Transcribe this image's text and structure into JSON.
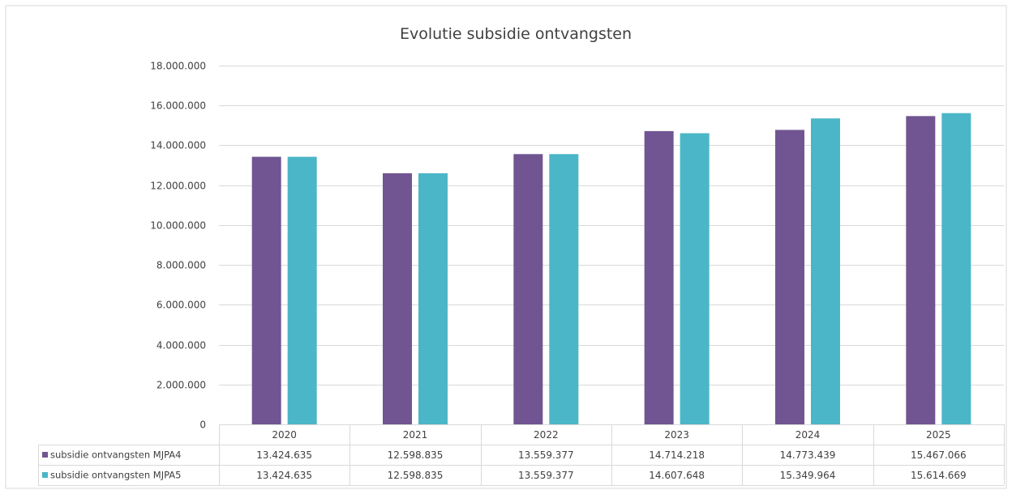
{
  "chart_data": {
    "type": "bar",
    "title": "Evolutie subsidie ontvangsten",
    "categories": [
      "2020",
      "2021",
      "2022",
      "2023",
      "2024",
      "2025"
    ],
    "ylim": [
      0,
      18000000
    ],
    "ytick_values": [
      0,
      2000000,
      4000000,
      6000000,
      8000000,
      10000000,
      12000000,
      14000000,
      16000000,
      18000000
    ],
    "ytick_labels": [
      "0",
      "2.000.000",
      "4.000.000",
      "6.000.000",
      "8.000.000",
      "10.000.000",
      "12.000.000",
      "14.000.000",
      "16.000.000",
      "18.000.000"
    ],
    "grid": true,
    "legend": "data-table",
    "series": [
      {
        "name": "subsidie ontvangsten MJPA4",
        "color": "#715592",
        "values": [
          13424635,
          12598835,
          13559377,
          14714218,
          14773439,
          15467066
        ],
        "labels": [
          "13.424.635",
          "12.598.835",
          "13.559.377",
          "14.714.218",
          "14.773.439",
          "15.467.066"
        ]
      },
      {
        "name": "subsidie ontvangsten MJPA5",
        "color": "#4BB6C7",
        "values": [
          13424635,
          12598835,
          13559377,
          14607648,
          15349964,
          15614669
        ],
        "labels": [
          "13.424.635",
          "12.598.835",
          "13.559.377",
          "14.607.648",
          "15.349.964",
          "15.614.669"
        ]
      }
    ]
  }
}
